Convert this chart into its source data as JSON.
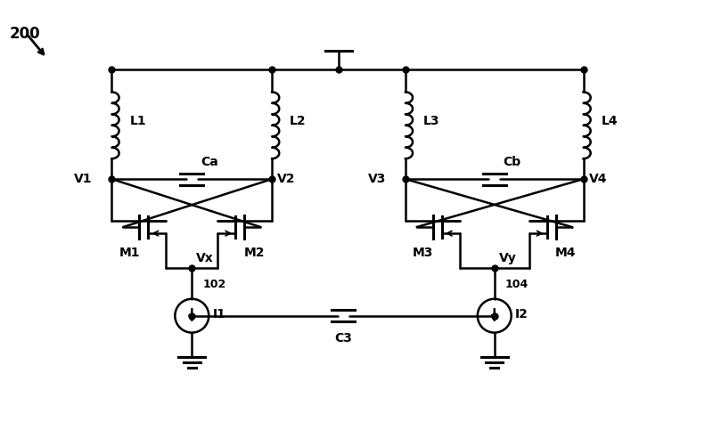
{
  "bg_color": "#ffffff",
  "line_color": "#000000",
  "fig_width": 8.0,
  "fig_height": 4.83,
  "lw": 1.8,
  "lw_thick": 2.2,
  "dot_size": 5,
  "coil_loops": 3,
  "label_200": "200",
  "L_labels": [
    "L1",
    "L2",
    "L3",
    "L4"
  ],
  "cap_labels": [
    "Ca",
    "Cb",
    "C3"
  ],
  "mos_labels": [
    "M1",
    "M2",
    "M3",
    "M4"
  ],
  "cur_labels": [
    "I1",
    "I2"
  ],
  "node_labels": [
    "V1",
    "V2",
    "V3",
    "V4",
    "Vx",
    "Vy"
  ],
  "ref_102": "102",
  "ref_104": "104",
  "fontsize": 10,
  "fontsize_ref": 9
}
